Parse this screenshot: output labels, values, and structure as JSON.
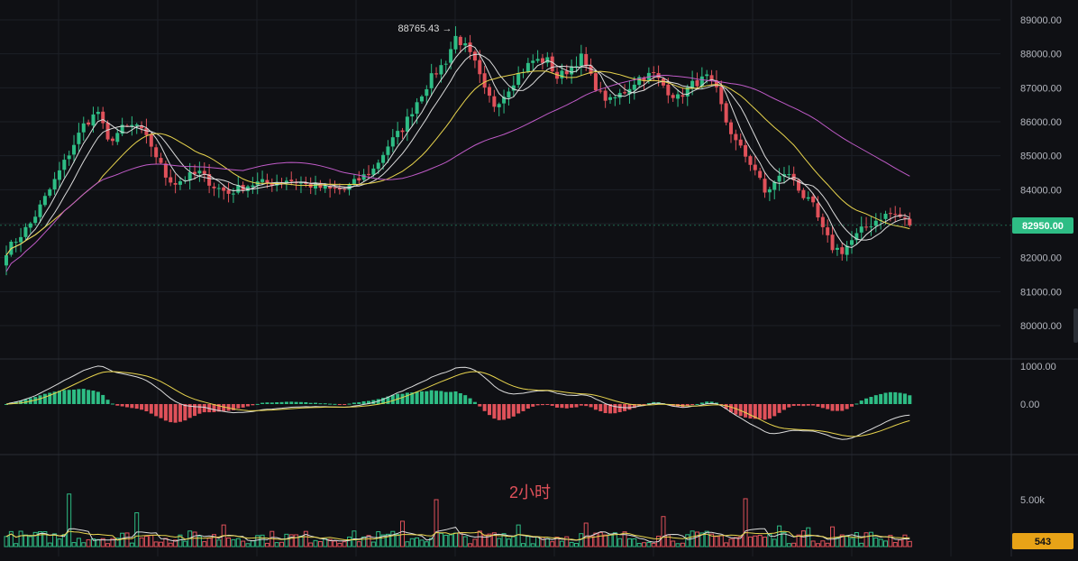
{
  "colors": {
    "background": "#0f1014",
    "grid": "#1c1f26",
    "up": "#2ebd85",
    "down": "#e0515a",
    "ma_white": "#dcdcdc",
    "ma_yellow": "#e8d44d",
    "ma_magenta": "#c05bc8",
    "axis_text": "#b4b7bf",
    "price_tag": "#2ebd85",
    "volume_tag": "#e8a317"
  },
  "chart_data": [
    {
      "type": "candlestick",
      "panel": "price",
      "timeframe_label": "2小时",
      "ylim": [
        79000,
        89600
      ],
      "y_ticks": [
        80000,
        81000,
        82000,
        83000,
        84000,
        85000,
        86000,
        87000,
        88000,
        89000
      ],
      "y_tick_labels": [
        "80000.00",
        "81000.00",
        "82000.00",
        "83000.00",
        "84000.00",
        "85000.00",
        "86000.00",
        "87000.00",
        "88000.00",
        "89000.00"
      ],
      "last_price": 82950,
      "last_price_label": "82950.00",
      "high_annotation": {
        "value": 88765.43,
        "label": "88765.43 →"
      },
      "series_keys": [
        {
          "name": "MA short",
          "color": "ma_white"
        },
        {
          "name": "MA medium",
          "color": "ma_white"
        },
        {
          "name": "MA long",
          "color": "ma_yellow"
        },
        {
          "name": "MA very long",
          "color": "ma_magenta"
        }
      ],
      "close_anchors": [
        [
          0,
          82200
        ],
        [
          5,
          83000
        ],
        [
          9,
          84000
        ],
        [
          12,
          84800
        ],
        [
          16,
          85900
        ],
        [
          19,
          86300
        ],
        [
          21,
          85400
        ],
        [
          24,
          85800
        ],
        [
          27,
          85900
        ],
        [
          30,
          85300
        ],
        [
          33,
          84400
        ],
        [
          35,
          84200
        ],
        [
          38,
          84400
        ],
        [
          40,
          84500
        ],
        [
          43,
          84100
        ],
        [
          46,
          83900
        ],
        [
          49,
          84100
        ],
        [
          52,
          84200
        ],
        [
          55,
          84200
        ],
        [
          58,
          84300
        ],
        [
          61,
          84200
        ],
        [
          64,
          84100
        ],
        [
          67,
          84000
        ],
        [
          70,
          84000
        ],
        [
          73,
          84300
        ],
        [
          76,
          84600
        ],
        [
          79,
          85300
        ],
        [
          82,
          85800
        ],
        [
          85,
          86600
        ],
        [
          88,
          87300
        ],
        [
          91,
          87800
        ],
        [
          93,
          88500
        ],
        [
          95,
          88200
        ],
        [
          97,
          87700
        ],
        [
          99,
          86900
        ],
        [
          101,
          86500
        ],
        [
          103,
          86800
        ],
        [
          106,
          87400
        ],
        [
          109,
          87800
        ],
        [
          112,
          87800
        ],
        [
          114,
          87300
        ],
        [
          116,
          87500
        ],
        [
          119,
          87900
        ],
        [
          121,
          87300
        ],
        [
          123,
          86800
        ],
        [
          125,
          86600
        ],
        [
          128,
          86900
        ],
        [
          131,
          87300
        ],
        [
          134,
          87400
        ],
        [
          137,
          86900
        ],
        [
          139,
          86700
        ],
        [
          142,
          87100
        ],
        [
          145,
          87300
        ],
        [
          147,
          86900
        ],
        [
          149,
          86000
        ],
        [
          151,
          85400
        ],
        [
          153,
          85000
        ],
        [
          155,
          84600
        ],
        [
          157,
          83900
        ],
        [
          159,
          84200
        ],
        [
          161,
          84500
        ],
        [
          163,
          84300
        ],
        [
          165,
          83800
        ],
        [
          167,
          83500
        ],
        [
          169,
          82800
        ],
        [
          171,
          82300
        ],
        [
          173,
          82200
        ],
        [
          175,
          82500
        ],
        [
          177,
          82800
        ],
        [
          179,
          83000
        ],
        [
          181,
          83200
        ],
        [
          183,
          83300
        ],
        [
          185,
          83200
        ],
        [
          187,
          83000
        ]
      ]
    },
    {
      "type": "macd",
      "panel": "macd",
      "y_ticks": [
        1000,
        0
      ],
      "y_tick_labels": [
        "1000.00",
        "0.00"
      ]
    },
    {
      "type": "volume",
      "panel": "volume",
      "y_ticks": [
        5000
      ],
      "y_tick_labels": [
        "5.00k"
      ],
      "last_volume": 543,
      "last_volume_label": "543",
      "spike_volumes": [
        [
          13,
          5600
        ],
        [
          27,
          3600
        ],
        [
          45,
          2300
        ],
        [
          82,
          2700
        ],
        [
          89,
          5000
        ],
        [
          106,
          2300
        ],
        [
          120,
          2500
        ],
        [
          136,
          3200
        ],
        [
          153,
          5100
        ],
        [
          160,
          2200
        ],
        [
          166,
          2000
        ],
        [
          171,
          2100
        ]
      ]
    }
  ]
}
